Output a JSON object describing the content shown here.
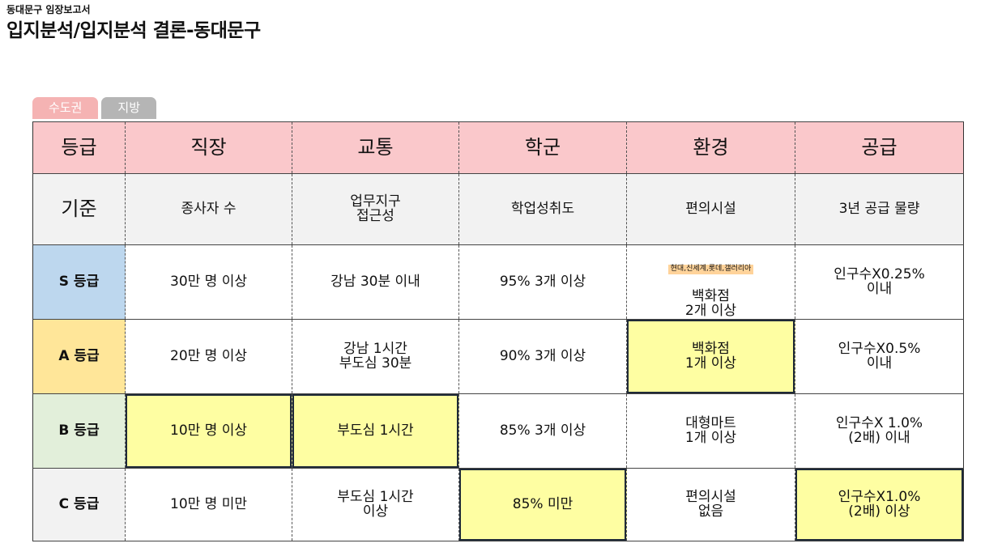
{
  "header": {
    "subtitle": "동대문구 임장보고서",
    "title": "입지분석/입지분석 결론-동대문구"
  },
  "tabs": [
    {
      "label": "수도권"
    },
    {
      "label": "지방"
    }
  ],
  "table": {
    "columns": [
      "등급",
      "직장",
      "교통",
      "학군",
      "환경",
      "공급"
    ],
    "criteria": {
      "label": "기준",
      "cells": [
        "종사자 수",
        "업무지구\n접근성",
        "학업성취도",
        "편의시설",
        "3년 공급 물량"
      ]
    },
    "rows": [
      {
        "grade": "S 등급",
        "cells": [
          "30만 명 이상",
          "강남 30분 이내",
          "95% 3개 이상",
          "백화점\n2개 이상",
          "인구수X0.25%\n이내"
        ],
        "note": "현대,신세계,롯데,갤러리아"
      },
      {
        "grade": "A 등급",
        "cells": [
          "20만 명 이상",
          "강남 1시간\n부도심 30분",
          "90% 3개 이상",
          "백화점\n1개 이상",
          "인구수X0.5%\n이내"
        ]
      },
      {
        "grade": "B 등급",
        "cells": [
          "10만 명 이상",
          "부도심 1시간",
          "85% 3개 이상",
          "대형마트\n1개 이상",
          "인구수X 1.0%\n(2배) 이내"
        ]
      },
      {
        "grade": "C 등급",
        "cells": [
          "10만 명 미만",
          "부도심 1시간\n이상",
          "85% 미만",
          "편의시설\n없음",
          "인구수X1.0%\n(2배) 이상"
        ]
      }
    ]
  }
}
